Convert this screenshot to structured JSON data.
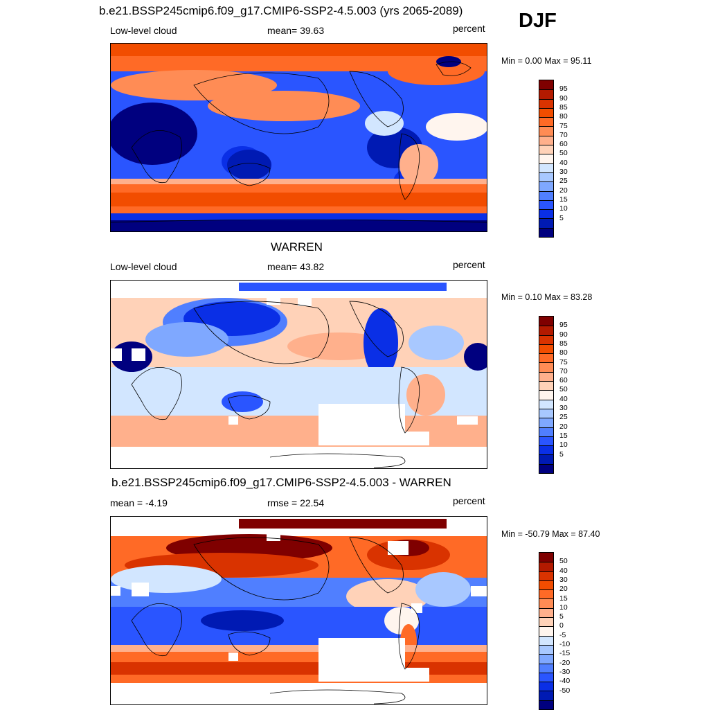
{
  "season": "DJF",
  "panels": [
    {
      "title": "b.e21.BSSP245cmip6.f09_g17.CMIP6-SSP2-4.5.003 (yrs 2065-2089)",
      "left_label": "Low-level cloud",
      "center_label": "mean=  39.63",
      "right_label": "percent",
      "minmax": "Min =   0.00 Max =  95.11",
      "kind": "model"
    },
    {
      "title": "WARREN",
      "left_label": "Low-level cloud",
      "center_label": "mean=  43.82",
      "right_label": "percent",
      "minmax": "Min =   0.10 Max =  83.28",
      "kind": "obs"
    },
    {
      "title": "b.e21.BSSP245cmip6.f09_g17.CMIP6-SSP2-4.5.003 - WARREN",
      "left_label": "mean =  -4.19",
      "center_label": "rmse =  22.54",
      "right_label": "percent",
      "minmax": "Min = -50.79 Max =  87.40",
      "kind": "diff"
    }
  ],
  "colorbars": {
    "field": {
      "labels": [
        "95",
        "90",
        "85",
        "80",
        "75",
        "70",
        "60",
        "50",
        "40",
        "30",
        "25",
        "20",
        "15",
        "10",
        "5"
      ],
      "colors": [
        "#7f0000",
        "#b31a00",
        "#d93300",
        "#f24d00",
        "#ff6a26",
        "#ff8c55",
        "#ffb08c",
        "#ffd2b8",
        "#fff5ee",
        "#d2e6ff",
        "#a8c8ff",
        "#7fa8ff",
        "#507fff",
        "#2a55ff",
        "#0a2fe6",
        "#001ab3",
        "#00007f"
      ]
    },
    "diff": {
      "labels": [
        "50",
        "40",
        "30",
        "20",
        "15",
        "10",
        "5",
        "0",
        "-5",
        "-10",
        "-15",
        "-20",
        "-30",
        "-40",
        "-50"
      ],
      "colors": [
        "#7f0000",
        "#b31a00",
        "#d93300",
        "#f24d00",
        "#ff6a26",
        "#ff8c55",
        "#ffb08c",
        "#ffd2b8",
        "#fff5ee",
        "#d2e6ff",
        "#a8c8ff",
        "#7fa8ff",
        "#507fff",
        "#2a55ff",
        "#0a2fe6",
        "#001ab3",
        "#00007f"
      ]
    }
  },
  "chart_data": [
    {
      "type": "heatmap",
      "title": "b.e21.BSSP245cmip6.f09_g17.CMIP6-SSP2-4.5.003 (yrs 2065-2089)",
      "variable": "Low-level cloud",
      "units": "percent",
      "mean": 39.63,
      "min": 0.0,
      "max": 95.11,
      "levels": [
        5,
        10,
        15,
        20,
        25,
        30,
        40,
        50,
        60,
        70,
        75,
        80,
        85,
        90,
        95
      ]
    },
    {
      "type": "heatmap",
      "title": "WARREN",
      "variable": "Low-level cloud",
      "units": "percent",
      "mean": 43.82,
      "min": 0.1,
      "max": 83.28,
      "levels": [
        5,
        10,
        15,
        20,
        25,
        30,
        40,
        50,
        60,
        70,
        75,
        80,
        85,
        90,
        95
      ]
    },
    {
      "type": "heatmap",
      "title": "b.e21.BSSP245cmip6.f09_g17.CMIP6-SSP2-4.5.003 - WARREN",
      "units": "percent",
      "mean": -4.19,
      "rmse": 22.54,
      "min": -50.79,
      "max": 87.4,
      "levels": [
        -50,
        -40,
        -30,
        -20,
        -15,
        -10,
        -5,
        0,
        5,
        10,
        15,
        20,
        30,
        40,
        50
      ]
    }
  ]
}
